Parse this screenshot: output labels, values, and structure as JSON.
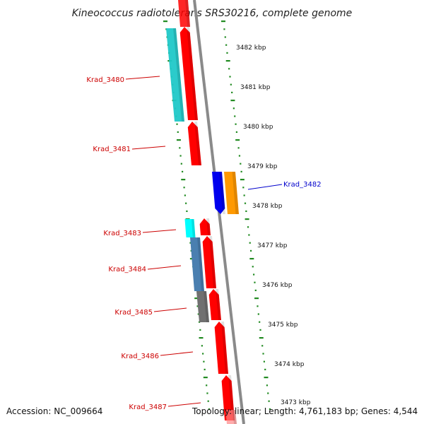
{
  "title": "Kineococcus radiotolerans SRS30216, complete genome",
  "footer": {
    "accession": "Accession: NC_009664",
    "summary": "Topology: linear; Length: 4,761,183 bp; Genes: 4,544"
  },
  "scale": {
    "unit": "kbp",
    "ticks": [
      {
        "value": 3482,
        "label": "3482 kbp"
      },
      {
        "value": 3481,
        "label": "3481 kbp"
      },
      {
        "value": 3480,
        "label": "3480 kbp"
      },
      {
        "value": 3479,
        "label": "3479 kbp"
      },
      {
        "value": 3478,
        "label": "3478 kbp"
      },
      {
        "value": 3477,
        "label": "3477 kbp"
      },
      {
        "value": 3476,
        "label": "3476 kbp"
      },
      {
        "value": 3475,
        "label": "3475 kbp"
      },
      {
        "value": 3474,
        "label": "3474 kbp"
      },
      {
        "value": 3473,
        "label": "3473 kbp"
      }
    ]
  },
  "gene_labels": [
    {
      "text": "Krad_3480",
      "color": "#cc0000"
    },
    {
      "text": "Krad_3481",
      "color": "#cc0000"
    },
    {
      "text": "Krad_3482",
      "color": "#0000cc"
    },
    {
      "text": "Krad_3483",
      "color": "#cc0000"
    },
    {
      "text": "Krad_3484",
      "color": "#cc0000"
    },
    {
      "text": "Krad_3485",
      "color": "#cc0000"
    },
    {
      "text": "Krad_3486",
      "color": "#cc0000"
    },
    {
      "text": "Krad_3487",
      "color": "#cc0000"
    }
  ],
  "colors": {
    "cds": "#ff0000",
    "cds_dark": "#b00000",
    "backbone": "#8a8a8a",
    "tick": "#228b22",
    "cyan": "#20c8c8",
    "bright_cyan": "#00ffff",
    "steel_blue": "#4a7fb0",
    "gray": "#707070",
    "blue": "#0000ee",
    "orange": "#ff9900"
  }
}
